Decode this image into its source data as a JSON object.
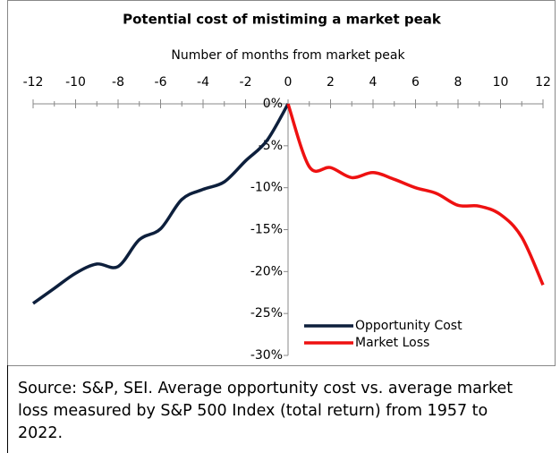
{
  "chart_data": {
    "type": "line",
    "title": "Potential cost of mistiming a market peak",
    "x_label": "Number of months from market peak",
    "x": [
      -12,
      -11,
      -10,
      -9,
      -8,
      -7,
      -6,
      -5,
      -4,
      -3,
      -2,
      -1,
      0,
      1,
      2,
      3,
      4,
      5,
      6,
      7,
      8,
      9,
      10,
      11,
      12
    ],
    "series": [
      {
        "name": "Opportunity Cost",
        "color": "#0d1f3c",
        "values": [
          -23.8,
          -22.0,
          -20.2,
          -19.1,
          -19.4,
          -16.2,
          -14.9,
          -11.4,
          -10.2,
          -9.3,
          -6.8,
          -4.4,
          0,
          null,
          null,
          null,
          null,
          null,
          null,
          null,
          null,
          null,
          null,
          null,
          null
        ]
      },
      {
        "name": "Market Loss",
        "color": "#ee1111",
        "values": [
          null,
          null,
          null,
          null,
          null,
          null,
          null,
          null,
          null,
          null,
          null,
          null,
          0,
          -7.5,
          -7.6,
          -8.8,
          -8.2,
          -9.0,
          -10.0,
          -10.7,
          -12.1,
          -12.2,
          -13.2,
          -15.9,
          -21.6
        ]
      }
    ],
    "xlim": [
      -12,
      12
    ],
    "xticks": [
      -12,
      -10,
      -8,
      -6,
      -4,
      -2,
      0,
      2,
      4,
      6,
      8,
      10,
      12
    ],
    "ylim": [
      -30,
      0
    ],
    "yticks": [
      {
        "value": 0,
        "label": "0%"
      },
      {
        "value": -5,
        "label": "-5%"
      },
      {
        "value": -10,
        "label": "-10%"
      },
      {
        "value": -15,
        "label": "-15%"
      },
      {
        "value": -20,
        "label": "-20%"
      },
      {
        "value": -25,
        "label": "-25%"
      },
      {
        "value": -30,
        "label": "-30%"
      }
    ],
    "legend": "lower right",
    "source": "Source: S&P, SEI. Average opportunity cost vs. average market loss measured by S&P 500 Index (total return) from 1957 to 2022."
  }
}
